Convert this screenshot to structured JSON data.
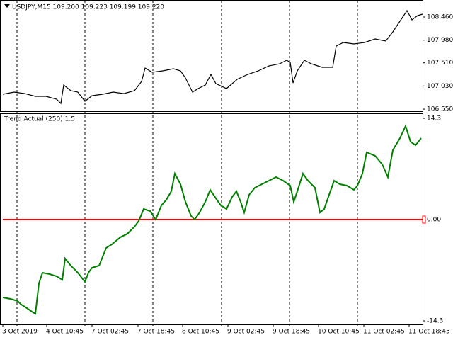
{
  "chart_data": [
    {
      "type": "line",
      "title": "USDJPY,M15  109.200 109.223 109.199 109.220",
      "xlim": [
        0,
        593
      ],
      "ylim": [
        106.536,
        108.754
      ],
      "yticks": [
        {
          "value": 108.46,
          "label": "108.460"
        },
        {
          "value": 107.98,
          "label": "107.980"
        },
        {
          "value": 107.51,
          "label": "107.510"
        },
        {
          "value": 107.03,
          "label": "107.030"
        },
        {
          "value": 106.55,
          "label": "106.550"
        }
      ],
      "series": [
        {
          "color": "#000000",
          "x": [
            0,
            16,
            31,
            46,
            61,
            76,
            82,
            86,
            96,
            106,
            116,
            126,
            141,
            156,
            171,
            186,
            196,
            201,
            211,
            226,
            241,
            251,
            258,
            268,
            276,
            286,
            294,
            301,
            316,
            331,
            346,
            361,
            376,
            391,
            401,
            406,
            410,
            416,
            426,
            436,
            451,
            466,
            471,
            481,
            496,
            511,
            526,
            541,
            551,
            561,
            571,
            578,
            586,
            593
          ],
          "values": [
            106.859,
            106.903,
            106.873,
            106.815,
            106.815,
            106.756,
            106.668,
            107.05,
            106.932,
            106.903,
            106.712,
            106.829,
            106.859,
            106.903,
            106.873,
            106.932,
            107.123,
            107.402,
            107.314,
            107.344,
            107.388,
            107.344,
            107.197,
            106.903,
            106.976,
            107.05,
            107.27,
            107.079,
            106.976,
            107.167,
            107.27,
            107.344,
            107.446,
            107.49,
            107.564,
            107.52,
            107.094,
            107.344,
            107.564,
            107.49,
            107.417,
            107.417,
            107.858,
            107.931,
            107.902,
            107.931,
            108.005,
            107.961,
            108.152,
            108.372,
            108.592,
            108.401,
            108.489,
            108.519
          ]
        }
      ]
    },
    {
      "type": "line",
      "title": "Trend Actual (250)  1.5",
      "xlim": [
        0,
        593
      ],
      "ylim": [
        -14.8,
        15.0
      ],
      "yticks": [
        14.3,
        -14.3
      ],
      "level": {
        "value": 0,
        "label": "0.00",
        "color": "#ff0000"
      },
      "xticks": [
        {
          "value": 0,
          "label": "3 Oct 2019"
        },
        {
          "value": 62,
          "label": "4 Oct 10:45"
        },
        {
          "value": 126,
          "label": "7 Oct 02:45"
        },
        {
          "value": 191,
          "label": "7 Oct 18:45"
        },
        {
          "value": 254,
          "label": "8 Oct 10:45"
        },
        {
          "value": 318,
          "label": "9 Oct 02:45"
        },
        {
          "value": 382,
          "label": "9 Oct 18:45"
        },
        {
          "value": 446,
          "label": "10 Oct 10:45"
        },
        {
          "value": 510,
          "label": "11 Oct 02:45"
        },
        {
          "value": 574,
          "label": "11 Oct 18:45"
        }
      ],
      "series": [
        {
          "color": "#008000",
          "x": [
            0,
            11,
            21,
            26,
            34,
            41,
            46,
            51,
            56,
            66,
            76,
            84,
            88,
            96,
            106,
            116,
            121,
            126,
            136,
            146,
            154,
            166,
            176,
            186,
            192,
            199,
            208,
            216,
            224,
            231,
            238,
            243,
            251,
            258,
            266,
            271,
            278,
            286,
            293,
            301,
            308,
            316,
            324,
            330,
            336,
            341,
            348,
            356,
            366,
            376,
            386,
            396,
            406,
            411,
            416,
            424,
            431,
            441,
            448,
            454,
            461,
            468,
            476,
            486,
            496,
            501,
            508,
            514,
            526,
            536,
            544,
            551,
            561,
            569,
            576,
            583,
            591
          ],
          "values": [
            -11,
            -11.2,
            -11.5,
            -12,
            -12.5,
            -13,
            -13.3,
            -9,
            -7.5,
            -7.7,
            -8,
            -8.5,
            -5.5,
            -6.5,
            -7.5,
            -8.8,
            -7.5,
            -6.8,
            -6.5,
            -4,
            -3.5,
            -2.5,
            -2,
            -1,
            -0.2,
            1.5,
            1.2,
            0,
            2,
            2.8,
            4,
            6.5,
            5,
            2.5,
            0.5,
            0,
            1,
            2.5,
            4.2,
            3,
            2,
            1.5,
            3.2,
            4,
            2.5,
            1,
            3.5,
            4.5,
            5,
            5.5,
            6,
            5.5,
            4.8,
            2.5,
            4,
            6.5,
            5.5,
            4.5,
            1,
            1.5,
            3.5,
            5.5,
            5,
            4.8,
            4.2,
            4.8,
            6.5,
            9.5,
            9,
            7.8,
            6,
            9.8,
            11.5,
            13.2,
            11,
            10.5,
            11.5
          ]
        }
      ]
    }
  ]
}
